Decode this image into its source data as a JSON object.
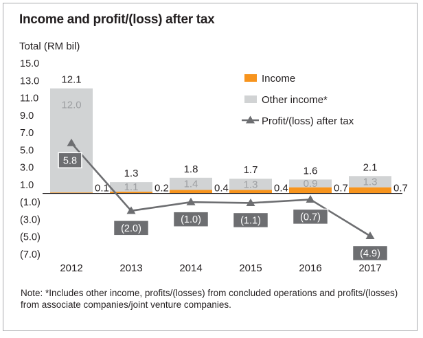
{
  "title": "Income and profit/(loss) after tax",
  "note": "Note: *Includes other income, profits/(losses) from concluded operations and profits/(losses) from associate companies/joint venture companies.",
  "chart_data": {
    "type": "bar",
    "title": "Income and profit/(loss) after tax",
    "ylabel": "Total (RM bil)",
    "ylim": [
      -7.0,
      15.0
    ],
    "yticks": [
      "15.0",
      "13.0",
      "11.0",
      "9.0",
      "7.0",
      "5.0",
      "3.0",
      "1.0",
      "(1.0)",
      "(3.0)",
      "(5.0)",
      "(7.0)"
    ],
    "ytick_values": [
      15,
      13,
      11,
      9,
      7,
      5,
      3,
      1,
      -1,
      -3,
      -5,
      -7
    ],
    "categories": [
      "2012",
      "2013",
      "2014",
      "2015",
      "2016",
      "2017"
    ],
    "series": [
      {
        "name": "Income",
        "kind": "bar",
        "color": "#f7941d",
        "values": [
          0.1,
          0.2,
          0.4,
          0.4,
          0.7,
          0.7
        ],
        "labels": [
          "0.1",
          "0.2",
          "0.4",
          "0.4",
          "0.7",
          "0.7"
        ]
      },
      {
        "name": "Other income*",
        "kind": "bar",
        "color": "#d1d3d4",
        "values": [
          12.0,
          1.1,
          1.4,
          1.3,
          0.9,
          1.3
        ],
        "labels": [
          "12.0",
          "1.1",
          "1.4",
          "1.3",
          "0.9",
          "1.3"
        ]
      },
      {
        "name": "Profit/(loss) after tax",
        "kind": "line",
        "color": "#6d6e71",
        "values": [
          5.8,
          -2.0,
          -1.0,
          -1.1,
          -0.7,
          -4.9
        ],
        "labels": [
          "5.8",
          "(2.0)",
          "(1.0)",
          "(1.1)",
          "(0.7)",
          "(4.9)"
        ]
      }
    ],
    "totals": [
      12.1,
      1.3,
      1.8,
      1.7,
      1.6,
      2.1
    ],
    "total_labels": [
      "12.1",
      "1.3",
      "1.8",
      "1.7",
      "1.6",
      "2.1"
    ],
    "legend_position": "top-right",
    "grid": false
  }
}
